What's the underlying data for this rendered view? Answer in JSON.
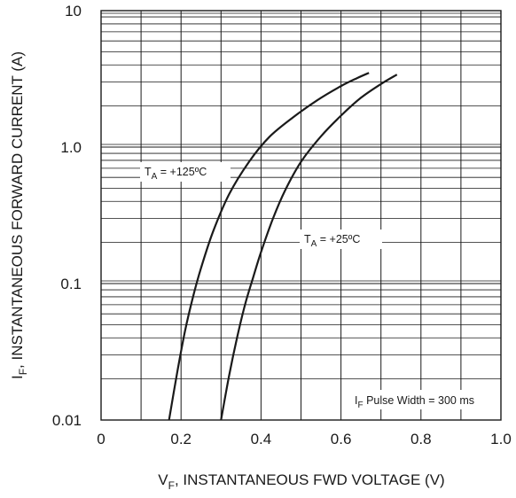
{
  "chart_data": {
    "type": "line",
    "x_scale": "linear",
    "y_scale": "log",
    "xlim": [
      0,
      1.0
    ],
    "ylim": [
      0.01,
      10
    ],
    "grid": true,
    "xlabel": {
      "main": "V",
      "sub": "F",
      "rest": ", INSTANTANEOUS FWD VOLTAGE (V)"
    },
    "ylabel": {
      "main": "I",
      "sub": "F",
      "rest": ", INSTANTANEOUS FORWARD CURRENT (A)"
    },
    "x_ticks": [
      {
        "value": 0,
        "label": "0"
      },
      {
        "value": 0.2,
        "label": "0.2"
      },
      {
        "value": 0.4,
        "label": "0.4"
      },
      {
        "value": 0.6,
        "label": "0.6"
      },
      {
        "value": 0.8,
        "label": "0.8"
      },
      {
        "value": 1.0,
        "label": "1.0"
      }
    ],
    "y_ticks": [
      {
        "value": 0.01,
        "label": "0.01"
      },
      {
        "value": 0.1,
        "label": "0.1"
      },
      {
        "value": 1.0,
        "label": "1.0"
      },
      {
        "value": 10,
        "label": "10"
      }
    ],
    "series": [
      {
        "label": {
          "main": "T",
          "sub": "A",
          "rest": " = +125ºC"
        },
        "x": [
          0.17,
          0.19,
          0.21,
          0.23,
          0.25,
          0.28,
          0.32,
          0.37,
          0.42,
          0.48,
          0.54,
          0.6,
          0.64,
          0.67
        ],
        "y": [
          0.01,
          0.022,
          0.045,
          0.08,
          0.13,
          0.24,
          0.45,
          0.78,
          1.18,
          1.65,
          2.2,
          2.8,
          3.2,
          3.5
        ]
      },
      {
        "label": {
          "main": "T",
          "sub": "A",
          "rest": " = +25ºC"
        },
        "x": [
          0.3,
          0.32,
          0.34,
          0.36,
          0.38,
          0.4,
          0.43,
          0.46,
          0.5,
          0.55,
          0.6,
          0.65,
          0.7,
          0.74
        ],
        "y": [
          0.01,
          0.021,
          0.04,
          0.07,
          0.11,
          0.17,
          0.3,
          0.48,
          0.78,
          1.2,
          1.7,
          2.3,
          2.9,
          3.4
        ]
      }
    ],
    "annotations": [
      {
        "id": "pulse",
        "main": "I",
        "sub": "F",
        "rest": " Pulse Width = 300 ms"
      }
    ]
  }
}
